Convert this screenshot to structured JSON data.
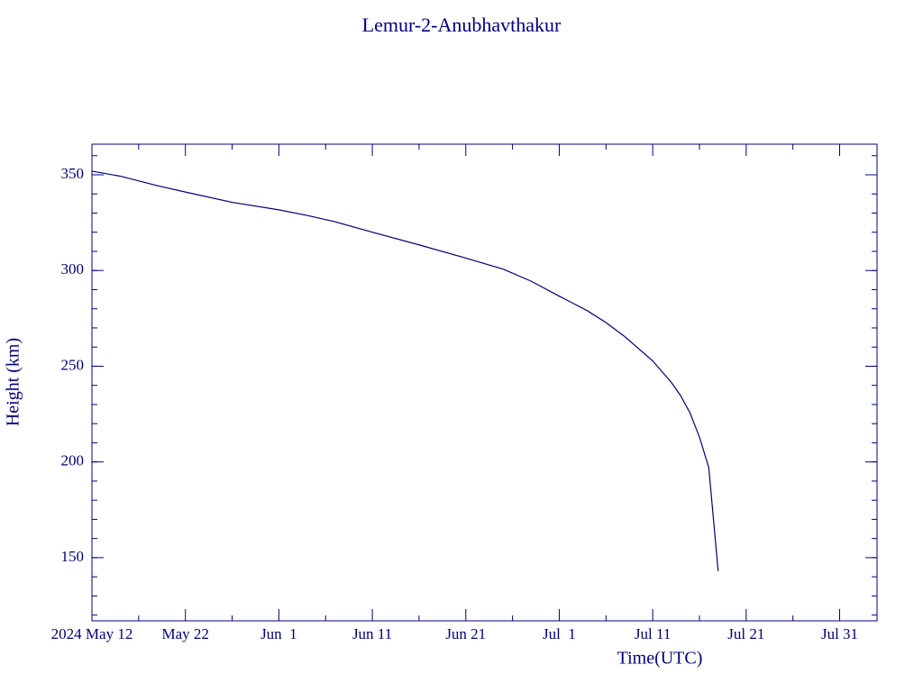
{
  "chart_data": {
    "type": "line",
    "title": "Lemur-2-Anubhavthakur",
    "x_label": "Time(UTC)",
    "y_label": "Height (km)",
    "color": "#000080",
    "x": [
      "2024-05-12",
      "2024-05-15",
      "2024-05-19",
      "2024-05-22",
      "2024-05-27",
      "2024-06-01",
      "2024-06-04",
      "2024-06-07",
      "2024-06-11",
      "2024-06-16",
      "2024-06-21",
      "2024-06-25",
      "2024-06-28",
      "2024-07-01",
      "2024-07-04",
      "2024-07-06",
      "2024-07-08",
      "2024-07-11",
      "2024-07-13",
      "2024-07-14",
      "2024-07-15",
      "2024-07-16",
      "2024-07-17",
      "2024-07-18"
    ],
    "values": [
      351.9,
      349.3,
      344.3,
      341,
      335.6,
      331.7,
      328.8,
      325.5,
      320,
      313.4,
      306.5,
      300.7,
      294.4,
      286.6,
      279,
      272.8,
      265.5,
      252.8,
      241.5,
      234.5,
      225.5,
      213,
      197,
      143
    ],
    "xlim": [
      "2024-05-12",
      "2024-08-04"
    ],
    "xticks": [
      {
        "value": "2024-05-12",
        "label": "2024 May 12"
      },
      {
        "value": "2024-05-22",
        "label": "May 22"
      },
      {
        "value": "2024-06-01",
        "label": "Jun  1"
      },
      {
        "value": "2024-06-11",
        "label": "Jun 11"
      },
      {
        "value": "2024-06-21",
        "label": "Jun 21"
      },
      {
        "value": "2024-07-01",
        "label": "Jul  1"
      },
      {
        "value": "2024-07-11",
        "label": "Jul 11"
      },
      {
        "value": "2024-07-21",
        "label": "Jul 21"
      },
      {
        "value": "2024-07-31",
        "label": "Jul 31"
      }
    ],
    "ylim": [
      117,
      366
    ],
    "yticks": [
      150,
      200,
      250,
      300,
      350
    ]
  }
}
